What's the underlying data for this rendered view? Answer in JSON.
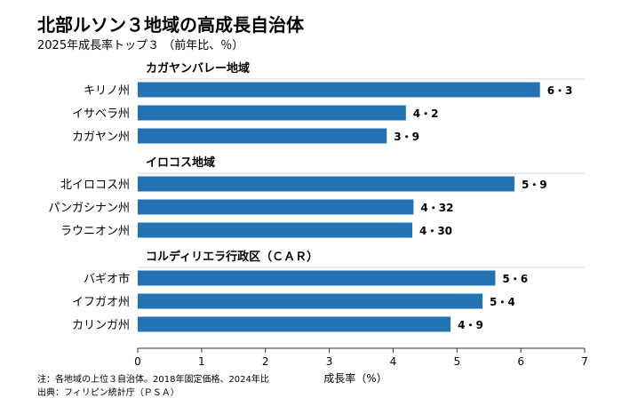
{
  "chart_data": {
    "type": "bar",
    "orientation": "horizontal",
    "title": "北部ルソン３地域の高成長自治体",
    "subtitle": "2025年成長率トップ３ （前年比、％）",
    "xlabel": "成長率（%）",
    "xlim": [
      0,
      7
    ],
    "xticks": [
      "0",
      "1",
      "2",
      "3",
      "4",
      "5",
      "6",
      "7"
    ],
    "groups": [
      {
        "name": "カガヤンバレー地域",
        "items": [
          {
            "label": "キリノ州",
            "value": 6.3,
            "value_label": "6・3"
          },
          {
            "label": "イサベラ州",
            "value": 4.2,
            "value_label": "4・2"
          },
          {
            "label": "カガヤン州",
            "value": 3.9,
            "value_label": "3・9"
          }
        ]
      },
      {
        "name": "イロコス地域",
        "items": [
          {
            "label": "北イロコス州",
            "value": 5.9,
            "value_label": "5・9"
          },
          {
            "label": "パンガシナン州",
            "value": 4.32,
            "value_label": "4・32"
          },
          {
            "label": "ラウニオン州",
            "value": 4.3,
            "value_label": "4・30"
          }
        ]
      },
      {
        "name": "コルディリエラ行政区（ＣＡＲ）",
        "items": [
          {
            "label": "バギオ市",
            "value": 5.6,
            "value_label": "5・6"
          },
          {
            "label": "イフガオ州",
            "value": 5.4,
            "value_label": "5・4"
          },
          {
            "label": "カリンガ州",
            "value": 4.9,
            "value_label": "4・9"
          }
        ]
      }
    ],
    "bar_color": "#2272b4",
    "grid": false,
    "notes": [
      "注：各地域の上位３自治体。2018年固定価格、2024年比",
      "出典：フィリピン統計庁（ＰＳＡ）"
    ]
  }
}
